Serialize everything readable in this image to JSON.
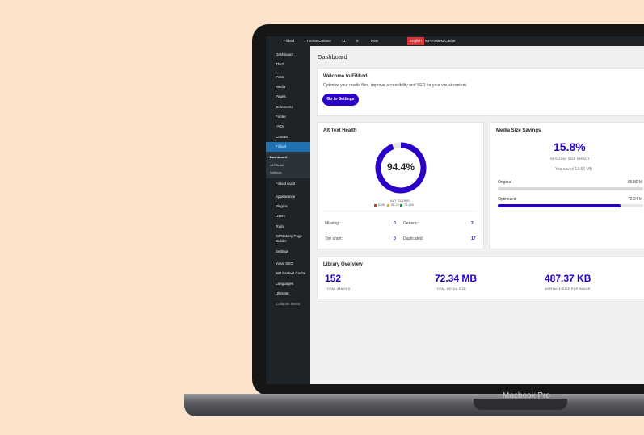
{
  "admin_bar": {
    "items": [
      "Filikod",
      "Theme Options",
      "11",
      "0",
      "New",
      "English",
      "WP Fastest Cache"
    ]
  },
  "sidebar": {
    "items": [
      "Dashboard",
      "The7",
      "Posts",
      "Media",
      "Pages",
      "Comments",
      "Footer",
      "FAQs",
      "Contact",
      "Filikod"
    ],
    "submenu": [
      "Dashboard",
      "ALT Audit",
      "Settings"
    ],
    "items_after": [
      "Filikod Audit",
      "Appearance",
      "Plugins",
      "Users",
      "Tools",
      "WPBakery Page Builder",
      "Settings",
      "Yoast SEO",
      "WP Fastest Cache",
      "Languages",
      "Ultimate",
      "Collapse Menu"
    ]
  },
  "page_title": "Dashboard",
  "welcome": {
    "title": "Welcome to Filikod",
    "text": "Optimize your media files, improve accessibility and SEO for your visual content.",
    "button": "Go to Settings"
  },
  "alt_health": {
    "title": "Alt Text Health",
    "score": {
      "value": 94.4,
      "label": "94.4%"
    },
    "score_label": "ALT SCORE",
    "legend": [
      "0–49",
      "50–74",
      "75–100"
    ],
    "stats": [
      {
        "label": "Missing:",
        "value": 0
      },
      {
        "label": "Generic:",
        "value": 2
      },
      {
        "label": "Too short:",
        "value": 0
      },
      {
        "label": "Duplicated:",
        "value": 17
      }
    ]
  },
  "media_savings": {
    "title": "Media Size Savings",
    "percent": "15.8%",
    "percent_label": "RESIZING SIZE IMPACT",
    "saved": "You saved 13.56 MB",
    "bars": [
      {
        "label": "Original",
        "value": 85.8,
        "value_label": "85.80 M"
      },
      {
        "label": "Optimized",
        "value": 72.34,
        "value_label": "72.34 M"
      }
    ]
  },
  "library": {
    "title": "Library Overview",
    "stats": [
      {
        "value": "152",
        "label": "TOTAL IMAGES"
      },
      {
        "value": "72.34 MB",
        "label": "TOTAL MEDIA SIZE"
      },
      {
        "value": "487.37 KB",
        "label": "AVERAGE SIZE PER IMAGE"
      }
    ]
  },
  "laptop_label": "Macbook Pro"
}
